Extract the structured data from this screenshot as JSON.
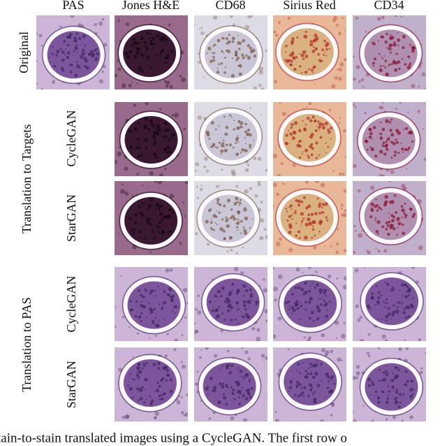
{
  "columns": [
    "PAS",
    "Jones H&E",
    "CD68",
    "Sirius Red",
    "CD34"
  ],
  "original": "Original",
  "groups": [
    {
      "label": "Translation to Targets",
      "rows": [
        "CycleGAN",
        "StarGAN"
      ]
    },
    {
      "label": "Translation to PAS",
      "rows": [
        "CycleGAN",
        "StarGAN"
      ]
    }
  ],
  "caption": "tain-to-stain translated images using a CycleGAN. The first row o"
}
